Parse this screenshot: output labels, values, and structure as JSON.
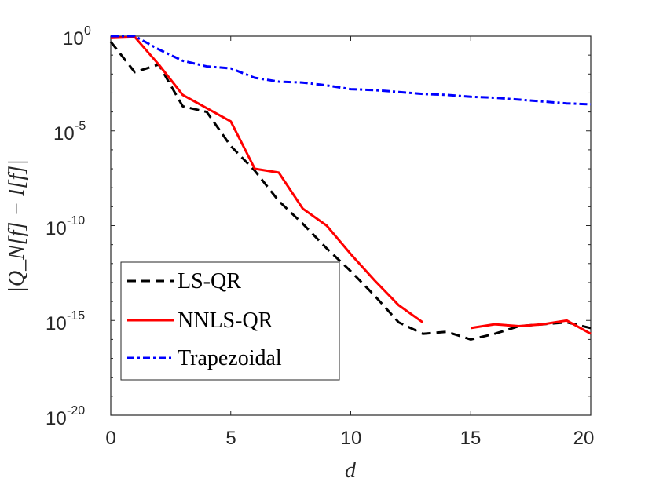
{
  "chart_data": {
    "type": "line",
    "scale_y": "log",
    "xlabel": "d",
    "ylabel": "|Q_N[f] − I[f]|",
    "xlim": [
      0,
      20
    ],
    "ylim_exponent": [
      -20,
      0
    ],
    "x_ticks": [
      "0",
      "5",
      "10",
      "15",
      "20"
    ],
    "y_ticks": [
      {
        "base": "10",
        "exp": "0",
        "log": 0
      },
      {
        "base": "10",
        "exp": "-5",
        "log": -5
      },
      {
        "base": "10",
        "exp": "-10",
        "log": -10
      },
      {
        "base": "10",
        "exp": "-15",
        "log": -15
      },
      {
        "base": "10",
        "exp": "-20",
        "log": -20
      }
    ],
    "legend_location": "bottom-left",
    "series": [
      {
        "name": "LS-QR",
        "color": "#000000",
        "dash": "dashed",
        "log10_values": [
          [
            0,
            -0.3
          ],
          [
            1,
            -1.9
          ],
          [
            2,
            -1.5
          ],
          [
            3,
            -3.7
          ],
          [
            4,
            -4.0
          ],
          [
            5,
            -5.8
          ],
          [
            6,
            -7.1
          ],
          [
            7,
            -8.7
          ],
          [
            8,
            -9.9
          ],
          [
            9,
            -11.2
          ],
          [
            10,
            -12.4
          ],
          [
            11,
            -13.7
          ],
          [
            12,
            -15.1
          ],
          [
            13,
            -15.7
          ],
          [
            14,
            -15.6
          ],
          [
            15,
            -16.0
          ],
          [
            16,
            -15.7
          ],
          [
            17,
            -15.3
          ],
          [
            18,
            -15.2
          ],
          [
            19,
            -15.1
          ],
          [
            20,
            -15.4
          ]
        ]
      },
      {
        "name": "NNLS-QR",
        "color": "#ff0000",
        "dash": "solid",
        "segments": [
          [
            [
              0,
              -0.1
            ],
            [
              1,
              -0.05
            ],
            [
              2,
              -1.5
            ],
            [
              3,
              -3.1
            ],
            [
              4,
              -3.8
            ],
            [
              5,
              -4.5
            ],
            [
              6,
              -7.0
            ],
            [
              7,
              -7.2
            ],
            [
              8,
              -9.1
            ],
            [
              9,
              -10.0
            ],
            [
              10,
              -11.5
            ],
            [
              11,
              -12.9
            ],
            [
              12,
              -14.2
            ],
            [
              13,
              -15.1
            ]
          ],
          [
            [
              15,
              -15.4
            ],
            [
              16,
              -15.2
            ],
            [
              17,
              -15.3
            ],
            [
              18,
              -15.2
            ],
            [
              19,
              -15.0
            ],
            [
              20,
              -15.7
            ]
          ]
        ]
      },
      {
        "name": "Trapezoidal",
        "color": "#0000ff",
        "dash": "dash-dot",
        "log10_values": [
          [
            0,
            0
          ],
          [
            1,
            0
          ],
          [
            2,
            -0.7
          ],
          [
            3,
            -1.3
          ],
          [
            4,
            -1.6
          ],
          [
            5,
            -1.7
          ],
          [
            6,
            -2.2
          ],
          [
            7,
            -2.4
          ],
          [
            8,
            -2.45
          ],
          [
            9,
            -2.6
          ],
          [
            10,
            -2.8
          ],
          [
            11,
            -2.85
          ],
          [
            12,
            -2.95
          ],
          [
            13,
            -3.05
          ],
          [
            14,
            -3.1
          ],
          [
            15,
            -3.2
          ],
          [
            16,
            -3.25
          ],
          [
            17,
            -3.35
          ],
          [
            18,
            -3.45
          ],
          [
            19,
            -3.55
          ],
          [
            20,
            -3.6
          ]
        ]
      }
    ]
  }
}
